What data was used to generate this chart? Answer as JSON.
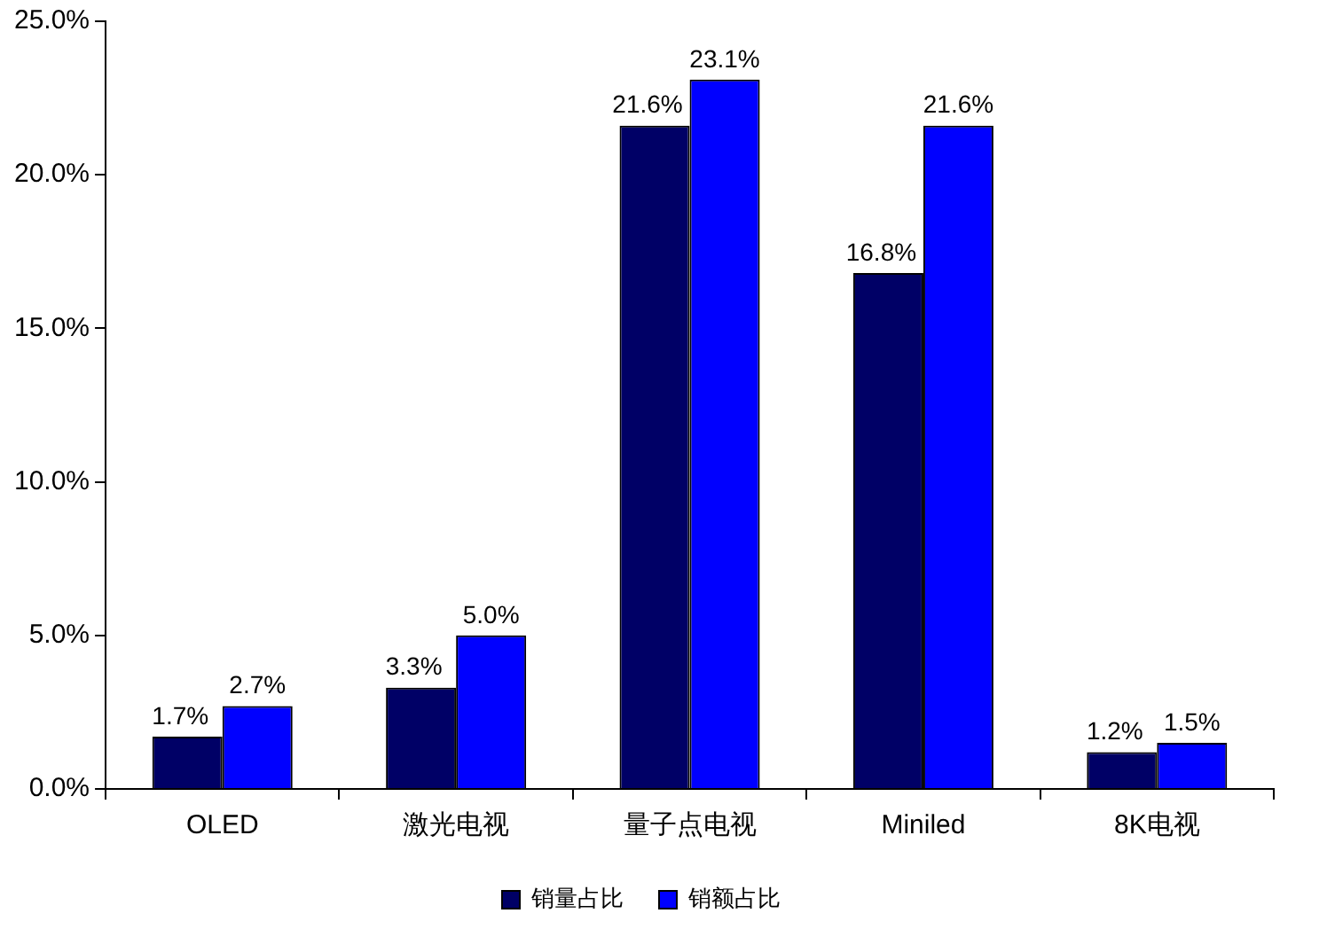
{
  "chart_data": {
    "type": "bar",
    "categories": [
      "OLED",
      "激光电视",
      "量子点电视",
      "Miniled",
      "8K电视"
    ],
    "series": [
      {
        "name": "销量占比",
        "color": "#000066",
        "values": [
          1.7,
          3.3,
          21.6,
          16.8,
          1.2
        ],
        "value_labels": [
          "1.7%",
          "3.3%",
          "21.6%",
          "16.8%",
          "1.2%"
        ]
      },
      {
        "name": "销额占比",
        "color": "#0000ff",
        "values": [
          2.7,
          5.0,
          23.1,
          21.6,
          1.5
        ],
        "value_labels": [
          "2.7%",
          "5.0%",
          "23.1%",
          "21.6%",
          "1.5%"
        ]
      }
    ],
    "ylim": [
      0,
      25
    ],
    "yticks": [
      {
        "value": 0,
        "label": "0.0%"
      },
      {
        "value": 5,
        "label": "5.0%"
      },
      {
        "value": 10,
        "label": "10.0%"
      },
      {
        "value": 15,
        "label": "15.0%"
      },
      {
        "value": 20,
        "label": "20.0%"
      },
      {
        "value": 25,
        "label": "25.0%"
      }
    ],
    "legend": "bottom"
  }
}
